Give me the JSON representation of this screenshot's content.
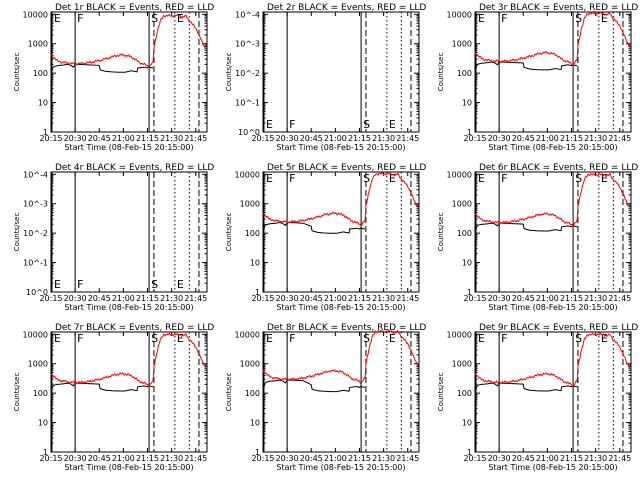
{
  "chart_data": {
    "type": "line",
    "xlabel": "Start Time (08-Feb-15 20:15:00)",
    "x_tick_labels": [
      "20:15",
      "20:30",
      "20:45",
      "21:00",
      "21:15",
      "21:30",
      "21:45"
    ],
    "x_tick_minutes": [
      0,
      15,
      30,
      45,
      60,
      75,
      90
    ],
    "xlim_minutes": [
      0,
      97
    ],
    "ylabel": "Counts/sec",
    "y_scale": "log",
    "ylim": [
      1,
      12000
    ],
    "y_tick_labels": [
      "1",
      "10",
      "100",
      "1000",
      "10000"
    ],
    "y_tick_values": [
      1,
      10,
      100,
      1000,
      10000
    ],
    "empty_y_tick_labels": [
      "10^0",
      "10^-1",
      "10^-2",
      "10^-3",
      "10^-4"
    ],
    "series_colors": {
      "events": "#000000",
      "lld": "#ff0000"
    },
    "markers": [
      {
        "label": "E",
        "minute": 0.6,
        "style": "solid"
      },
      {
        "label": "F",
        "minute": 15,
        "style": "solid"
      },
      {
        "label": "S",
        "minute": 61,
        "style": "solid"
      },
      {
        "label": "",
        "minute": 64,
        "style": "dashed"
      },
      {
        "label": "E",
        "minute": 77,
        "style": "dotted"
      },
      {
        "label": "",
        "minute": 86,
        "style": "dotted"
      },
      {
        "label": "",
        "minute": 92,
        "style": "dashed"
      }
    ],
    "panels": [
      {
        "title": "Det 1r BLACK = Events, RED = LLD",
        "empty": false,
        "level": 1.0,
        "drop": 1.0
      },
      {
        "title": "Det 2r BLACK = Events, RED = LLD",
        "empty": true
      },
      {
        "title": "Det 3r BLACK = Events, RED = LLD",
        "empty": false,
        "level": 1.2,
        "drop": 1.0
      },
      {
        "title": "Det 4r BLACK = Events, RED = LLD",
        "empty": true
      },
      {
        "title": "Det 5r BLACK = Events, RED = LLD",
        "empty": false,
        "level": 1.15,
        "drop": 0.8
      },
      {
        "title": "Det 6r BLACK = Events, RED = LLD",
        "empty": false,
        "level": 1.1,
        "drop": 1.0
      },
      {
        "title": "Det 7r BLACK = Events, RED = LLD",
        "empty": false,
        "level": 1.1,
        "drop": 1.0
      },
      {
        "title": "Det 8r BLACK = Events, RED = LLD",
        "empty": false,
        "level": 1.4,
        "drop": 0.75
      },
      {
        "title": "Det 9r BLACK = Events, RED = LLD",
        "empty": false,
        "level": 1.1,
        "drop": 1.0
      }
    ],
    "events_profile": {
      "minutes": [
        0,
        1,
        2,
        4,
        6,
        8,
        10,
        12,
        14,
        15,
        16,
        20,
        25,
        30,
        30.5,
        34,
        38,
        42,
        46,
        50,
        53.5,
        54,
        58,
        60,
        60.5,
        63.5
      ],
      "counts": [
        70,
        150,
        170,
        180,
        185,
        190,
        200,
        190,
        160,
        200,
        200,
        195,
        190,
        185,
        130,
        115,
        110,
        108,
        108,
        120,
        110,
        150,
        160,
        150,
        160,
        150
      ]
    },
    "lld_profile": {
      "minutes": [
        0,
        2,
        4,
        8,
        12,
        15,
        20,
        25,
        30,
        35,
        40,
        45,
        50,
        55,
        60,
        61,
        62.5,
        63.5,
        64,
        66,
        68,
        70,
        80,
        82,
        84,
        86,
        90,
        92,
        94,
        96
      ],
      "counts": [
        420,
        330,
        260,
        230,
        215,
        210,
        215,
        235,
        270,
        320,
        390,
        420,
        360,
        230,
        180,
        160,
        210,
        230,
        700,
        2500,
        6000,
        9000,
        9000,
        8000,
        9000,
        6000,
        3500,
        2000,
        1100,
        700
      ]
    }
  }
}
